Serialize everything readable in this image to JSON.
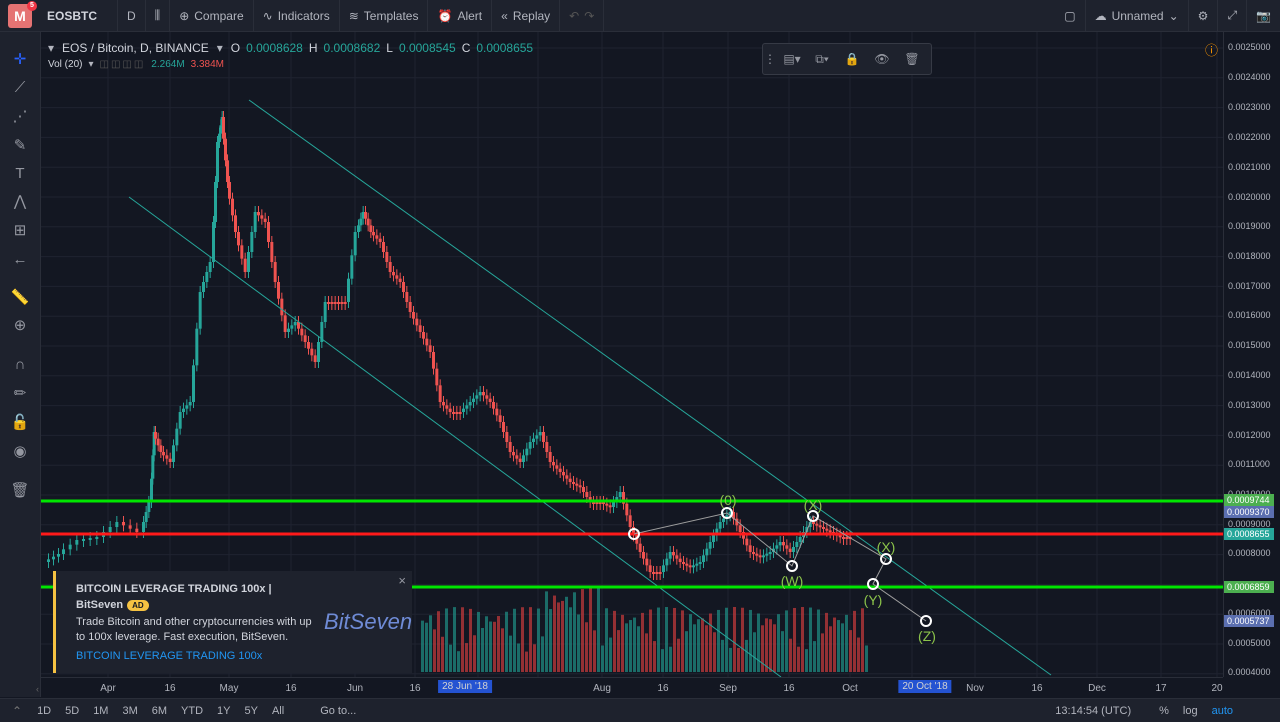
{
  "topbar": {
    "logo_letter": "M",
    "logo_badge": "5",
    "symbol": "EOSBTC",
    "interval": "D",
    "compare": "Compare",
    "indicators": "Indicators",
    "templates": "Templates",
    "alert": "Alert",
    "replay": "Replay",
    "layout_name": "Unnamed"
  },
  "legend": {
    "title": "EOS / Bitcoin, D, BINANCE",
    "o_key": "O",
    "o_val": "0.0008628",
    "h_key": "H",
    "h_val": "0.0008682",
    "l_key": "L",
    "l_val": "0.0008545",
    "c_key": "C",
    "c_val": "0.0008655",
    "vol_label": "Vol (20)",
    "vol_val1": "2.264M",
    "vol_val2": "3.384M"
  },
  "price_axis": {
    "ticks": [
      "0.0025000",
      "0.0024000",
      "0.0023000",
      "0.0022000",
      "0.0021000",
      "0.0020000",
      "0.0019000",
      "0.0018000",
      "0.0017000",
      "0.0016000",
      "0.0015000",
      "0.0014000",
      "0.0013000",
      "0.0012000",
      "0.0011000",
      "0.0010000",
      "0.0009000",
      "0.0008000",
      "0.0006000",
      "0.0005000",
      "0.0004000"
    ],
    "tags": [
      {
        "text": "0.0009744",
        "color": "#4caf50"
      },
      {
        "text": "0.0009370",
        "color": "#5b6fb0"
      },
      {
        "text": "0.0008655",
        "color": "#26a69a"
      },
      {
        "text": "0.0006859",
        "color": "#4caf50"
      },
      {
        "text": "0.0005737",
        "color": "#5b6fb0"
      }
    ]
  },
  "time_axis": {
    "labels": [
      "Apr",
      "16",
      "May",
      "16",
      "Jun",
      "16",
      "Aug",
      "16",
      "Sep",
      "16",
      "Oct",
      "Nov",
      "16",
      "Dec",
      "17",
      "20"
    ],
    "tag_left": "28 Jun '18",
    "tag_right": "20 Oct '18"
  },
  "bottombar": {
    "ranges": [
      "1D",
      "5D",
      "1M",
      "3M",
      "6M",
      "YTD",
      "1Y",
      "5Y",
      "All"
    ],
    "goto": "Go to...",
    "time": "13:14:54 (UTC)",
    "percent": "%",
    "log": "log",
    "auto": "auto"
  },
  "ad": {
    "headline": "BITCOIN LEVERAGE TRADING 100x | BitSeven",
    "tag": "AD",
    "body": "Trade Bitcoin and other cryptocurrencies with up to 100x leverage. Fast execution, BitSeven.",
    "link": "BITCOIN LEVERAGE TRADING 100x",
    "brand": "BitSeven",
    "close": "×"
  },
  "wave_labels": [
    "(0)",
    "(X)",
    "(W)",
    "(X)",
    "(Y)",
    "(Z)"
  ],
  "colors": {
    "up": "#26a69a",
    "down": "#ef5350",
    "green_line": "#00e600",
    "red_line": "#ff1a1a",
    "channel": "#26a69a"
  }
}
